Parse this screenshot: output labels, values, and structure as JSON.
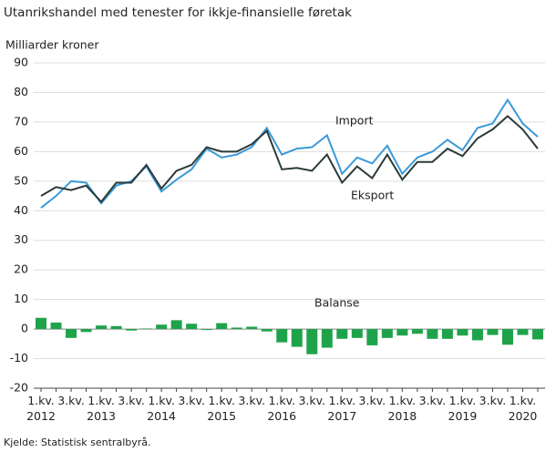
{
  "chart_data": {
    "type": "line-bar",
    "title": "Utanrikshandel  med tenester  for ikkje-finansielle  føretak",
    "y_label": "Milliarder kroner",
    "source": "Kjelde: Statistisk sentralbyrå.",
    "categories": [
      "1.kv. 2012",
      null,
      "3.kv.",
      null,
      "1.kv. 2013",
      null,
      "3.kv.",
      null,
      "1.kv. 2014",
      null,
      "3.kv.",
      null,
      "1.kv. 2015",
      null,
      "3.kv.",
      null,
      "1.kv. 2016",
      null,
      "3.kv.",
      null,
      "1.kv. 2017",
      null,
      "3.kv.",
      null,
      "1.kv. 2018",
      null,
      "3.kv.",
      null,
      "1.kv. 2019",
      null,
      "3.kv.",
      null,
      "1.kv. 2020",
      null
    ],
    "series": [
      {
        "name": "Import",
        "kind": "line",
        "color": "#3a9ad9",
        "values": [
          41,
          45,
          50,
          49.5,
          42.5,
          48.5,
          50,
          55,
          46.5,
          50.5,
          54,
          61,
          58,
          59,
          61.5,
          68,
          59,
          61,
          61.5,
          65.5,
          52.5,
          58,
          56,
          62,
          52.5,
          58,
          60,
          64,
          60.5,
          68,
          69.5,
          77.5,
          69.5,
          65
        ]
      },
      {
        "name": "Eksport",
        "kind": "line",
        "color": "#2b3a3a",
        "values": [
          45,
          48,
          47,
          48.5,
          43,
          49.5,
          49.5,
          55.5,
          47.5,
          53.5,
          55.5,
          61.5,
          60,
          60,
          62.5,
          67,
          54,
          54.5,
          53.5,
          59,
          49.5,
          55,
          51,
          59,
          50.5,
          56.5,
          56.5,
          61,
          58.5,
          64.5,
          67.5,
          72,
          67.5,
          61
        ]
      },
      {
        "name": "Balanse",
        "kind": "bar",
        "color": "#1fa34a",
        "values": [
          3.8,
          2.2,
          -3,
          -1,
          1.2,
          1,
          -0.5,
          0.2,
          1.5,
          3,
          1.8,
          -0.3,
          2,
          0.5,
          0.8,
          -0.8,
          -4.5,
          -6,
          -8.5,
          -6.3,
          -3.3,
          -3,
          -5.5,
          -3,
          -2.2,
          -1.6,
          -3.3,
          -3.3,
          -2.2,
          -3.8,
          -2,
          -5.3,
          -2,
          -3.5
        ]
      }
    ],
    "ylim": [
      -20,
      90
    ],
    "yticks": [
      -20,
      -10,
      0,
      10,
      20,
      30,
      40,
      50,
      60,
      70,
      80,
      90
    ],
    "grid": true
  }
}
